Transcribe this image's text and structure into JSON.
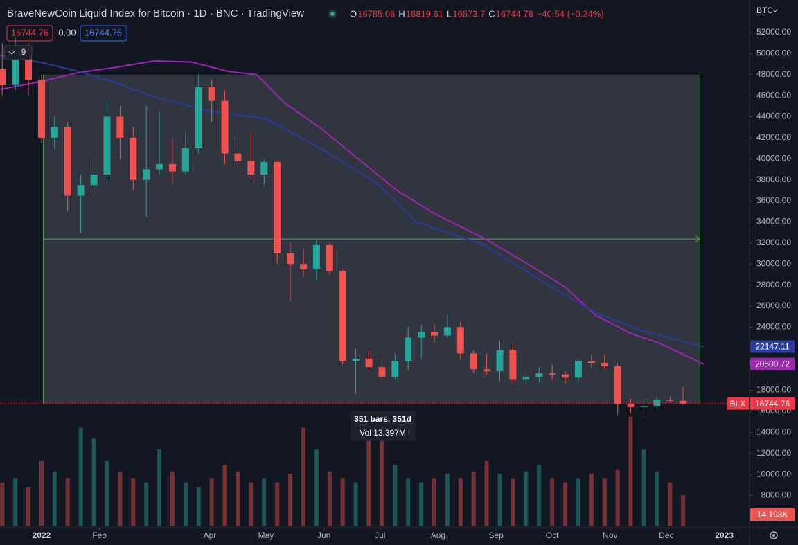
{
  "chart_data": {
    "type": "candlestick",
    "title": "BraveNewCoin Liquid Index for Bitcoin · 1D · BNC · TradingView",
    "ohlc": [
      {
        "label": "O",
        "value": 16785.06
      },
      {
        "label": "H",
        "value": 16819.61
      },
      {
        "label": "L",
        "value": 16673.7
      },
      {
        "label": "C",
        "value": 16744.76
      }
    ],
    "change": "−40.54 (−0.24%)",
    "inputs": [
      "16744.76",
      "0.00",
      "16744.76"
    ],
    "interval_badge": "9",
    "currency": "BTC",
    "xlim": [
      -22.2,
      378.5
    ],
    "xticks": [
      {
        "value": 0,
        "label": "2022"
      },
      {
        "value": 31,
        "label": "Feb"
      },
      {
        "value": 90,
        "label": "Apr"
      },
      {
        "value": 120,
        "label": "May"
      },
      {
        "value": 151,
        "label": "Jun"
      },
      {
        "value": 181,
        "label": "Jul"
      },
      {
        "value": 212,
        "label": "Aug"
      },
      {
        "value": 243,
        "label": "Sep"
      },
      {
        "value": 273,
        "label": "Oct"
      },
      {
        "value": 304,
        "label": "Nov"
      },
      {
        "value": 334,
        "label": "Dec"
      },
      {
        "value": 365,
        "label": "2023"
      }
    ],
    "ylim": [
      4940,
      55090
    ],
    "yticks": [
      {
        "value": 8000,
        "label": "8000.00"
      },
      {
        "value": 10000,
        "label": "10000.00"
      },
      {
        "value": 12000,
        "label": "12000.00"
      },
      {
        "value": 14000,
        "label": "14000.00"
      },
      {
        "value": 16000,
        "label": "16000.00"
      },
      {
        "value": 18000,
        "label": "18000.00"
      },
      {
        "value": 24000,
        "label": "24000.00"
      },
      {
        "value": 26000,
        "label": "26000.00"
      },
      {
        "value": 28000,
        "label": "28000.00"
      },
      {
        "value": 30000,
        "label": "30000.00"
      },
      {
        "value": 32000,
        "label": "32000.00"
      },
      {
        "value": 34000,
        "label": "34000.00"
      },
      {
        "value": 36000,
        "label": "36000.00"
      },
      {
        "value": 38000,
        "label": "38000.00"
      },
      {
        "value": 40000,
        "label": "40000.00"
      },
      {
        "value": 42000,
        "label": "42000.00"
      },
      {
        "value": 44000,
        "label": "44000.00"
      },
      {
        "value": 46000,
        "label": "46000.00"
      },
      {
        "value": 48000,
        "label": "48000.00"
      },
      {
        "value": 50000,
        "label": "50000.00"
      },
      {
        "value": 52000,
        "label": "52000.00"
      }
    ],
    "up_color": "#26a69a",
    "down_color": "#ef5350",
    "candles": {
      "x": [
        -21,
        -14,
        -7,
        0,
        7,
        14,
        21,
        28,
        35,
        42,
        49,
        56,
        63,
        70,
        77,
        84,
        91,
        98,
        105,
        112,
        119,
        126,
        133,
        140,
        147,
        154,
        161,
        168,
        175,
        182,
        189,
        196,
        203,
        210,
        217,
        224,
        231,
        238,
        245,
        252,
        259,
        266,
        273,
        280,
        287,
        294,
        301,
        308,
        315,
        322,
        329,
        336,
        343
      ],
      "open": [
        48500,
        47000,
        49500,
        47500,
        42000,
        43000,
        36500,
        37500,
        38500,
        44000,
        42000,
        38000,
        39000,
        39500,
        38800,
        41000,
        46800,
        45500,
        40500,
        39800,
        38500,
        39700,
        31000,
        30000,
        29500,
        31800,
        29300,
        20800,
        21000,
        20200,
        19300,
        20800,
        23000,
        23500,
        23200,
        24000,
        21500,
        20000,
        19800,
        21800,
        19000,
        19300,
        19600,
        19500,
        19200,
        20800,
        20600,
        20300,
        16700,
        16400,
        16500,
        17100,
        17000
      ],
      "high": [
        51000,
        51500,
        51000,
        48000,
        44000,
        43500,
        38500,
        40000,
        45500,
        45000,
        43000,
        45000,
        44500,
        42000,
        42500,
        48000,
        47500,
        46500,
        42000,
        42500,
        40000,
        39800,
        32000,
        31500,
        32300,
        32000,
        29500,
        22000,
        21800,
        21000,
        21500,
        24000,
        24200,
        24300,
        25200,
        24500,
        21800,
        21500,
        22700,
        22500,
        19600,
        20200,
        20500,
        19800,
        21000,
        21400,
        21400,
        20600,
        17200,
        17000,
        17300,
        17400,
        18300
      ],
      "low": [
        46000,
        46500,
        46000,
        41500,
        41000,
        35000,
        33000,
        36500,
        38000,
        40000,
        37000,
        34500,
        38500,
        37500,
        38500,
        40500,
        43500,
        39500,
        39000,
        38000,
        37500,
        30000,
        26500,
        28800,
        28500,
        29000,
        20500,
        17600,
        20000,
        18800,
        19000,
        20000,
        21000,
        22500,
        23000,
        20900,
        19600,
        19500,
        18800,
        18500,
        18600,
        18700,
        19000,
        18600,
        18900,
        20100,
        20000,
        15700,
        15800,
        15500,
        16200,
        16800,
        16600
      ],
      "close": [
        47000,
        49500,
        47500,
        42000,
        43000,
        36500,
        37500,
        38500,
        44000,
        42000,
        38000,
        39000,
        39500,
        38800,
        41000,
        46800,
        45500,
        40500,
        39800,
        38500,
        39700,
        31000,
        30000,
        29500,
        31800,
        29300,
        20800,
        21000,
        20200,
        19300,
        20800,
        23000,
        23500,
        23200,
        24000,
        21500,
        20000,
        19800,
        21800,
        19000,
        19300,
        19600,
        19500,
        19200,
        20800,
        20600,
        20300,
        16700,
        16400,
        16500,
        17100,
        17000,
        16744.76
      ]
    },
    "volume": {
      "values": [
        20,
        22,
        18,
        30,
        25,
        22,
        45,
        40,
        30,
        25,
        22,
        20,
        35,
        25,
        20,
        18,
        22,
        28,
        25,
        20,
        22,
        20,
        24,
        45,
        35,
        25,
        22,
        20,
        50,
        40,
        28,
        22,
        20,
        22,
        24,
        22,
        25,
        30,
        24,
        22,
        25,
        28,
        22,
        20,
        22,
        24,
        22,
        26,
        50,
        35,
        25,
        20,
        14.193
      ],
      "vlim": [
        0,
        60
      ],
      "last_label": "14.193K"
    },
    "ma_lines": [
      {
        "color": "#9c27b0",
        "x": [
          -22,
          0,
          20,
          40,
          60,
          80,
          100,
          115,
          130,
          150,
          163,
          190,
          210,
          237,
          260,
          280,
          296,
          315,
          330,
          354
        ],
        "values": [
          46600,
          47350,
          48200,
          48700,
          49300,
          49200,
          48300,
          48000,
          45300,
          42800,
          40900,
          37000,
          34800,
          32400,
          30000,
          27800,
          25150,
          23400,
          22500,
          20500.72
        ]
      },
      {
        "color": "#2a3d9c",
        "x": [
          -22,
          0,
          20,
          40,
          60,
          90,
          120,
          150,
          180,
          200,
          237,
          270,
          296,
          320,
          354
        ],
        "values": [
          49800,
          49150,
          48300,
          47200,
          45900,
          44550,
          43800,
          40900,
          37600,
          34000,
          31800,
          28100,
          25400,
          23700,
          22147.11
        ]
      }
    ],
    "price_labels": [
      {
        "value": 22147.11,
        "color": "#2a3d9c"
      },
      {
        "value": 20500.72,
        "color": "#9c27b0"
      },
      {
        "value": 16744.76,
        "color": "#f23645",
        "tag": "BLX"
      }
    ],
    "measure": {
      "x": [
        1,
        352
      ],
      "price": [
        48000,
        16744.76
      ],
      "bars": "351 bars, 351d",
      "vol": "Vol 13.397M"
    }
  }
}
